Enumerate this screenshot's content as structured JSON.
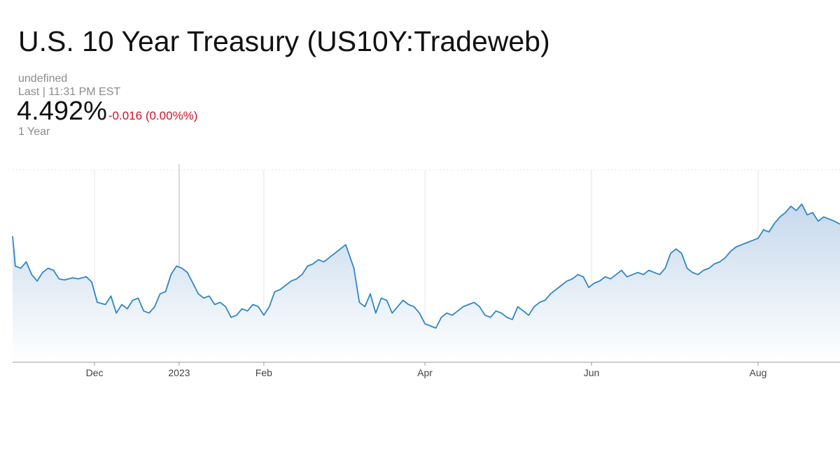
{
  "header": {
    "title": "U.S. 10 Year Treasury (US10Y:Tradeweb)",
    "subtitle_undefined": "undefined",
    "last_updated": "Last | 11:31 PM EST",
    "price": "4.492%",
    "change": "-0.016 (0.00%%)",
    "range": "1 Year"
  },
  "colors": {
    "line": "#2f86c6",
    "area_top": "#c6d9ec",
    "area_bottom": "#ffffff",
    "negative": "#d1102a",
    "grid": "#e6e6e6",
    "axis": "#999999"
  },
  "chart_data": {
    "type": "area",
    "title": "",
    "xlabel": "",
    "ylabel": "",
    "x_tick_labels": [
      "Dec",
      "2023",
      "Feb",
      "Apr",
      "Jun",
      "Aug"
    ],
    "x_ticks": [
      "2022-12-01",
      "2023-01-01",
      "2023-02-01",
      "2023-04-01",
      "2023-06-01",
      "2023-08-01"
    ],
    "xlim": [
      "2022-11-01",
      "2023-08-31"
    ],
    "ylim": [
      3.2,
      5.0
    ],
    "y_axis_labels_visible": false,
    "grid": true,
    "series": [
      {
        "points": [
          [
            "2022-11-01",
            4.38
          ],
          [
            "2022-11-02",
            4.1
          ],
          [
            "2022-11-04",
            4.08
          ],
          [
            "2022-11-06",
            4.14
          ],
          [
            "2022-11-08",
            4.02
          ],
          [
            "2022-11-10",
            3.96
          ],
          [
            "2022-11-12",
            4.04
          ],
          [
            "2022-11-14",
            4.08
          ],
          [
            "2022-11-16",
            4.06
          ],
          [
            "2022-11-18",
            3.98
          ],
          [
            "2022-11-20",
            3.97
          ],
          [
            "2022-11-23",
            3.99
          ],
          [
            "2022-11-25",
            3.98
          ],
          [
            "2022-11-28",
            4.0
          ],
          [
            "2022-11-30",
            3.95
          ],
          [
            "2022-12-02",
            3.76
          ],
          [
            "2022-12-05",
            3.74
          ],
          [
            "2022-12-07",
            3.82
          ],
          [
            "2022-12-09",
            3.66
          ],
          [
            "2022-12-11",
            3.74
          ],
          [
            "2022-12-13",
            3.7
          ],
          [
            "2022-12-15",
            3.78
          ],
          [
            "2022-12-17",
            3.8
          ],
          [
            "2022-12-19",
            3.68
          ],
          [
            "2022-12-21",
            3.66
          ],
          [
            "2022-12-23",
            3.72
          ],
          [
            "2022-12-25",
            3.84
          ],
          [
            "2022-12-27",
            3.86
          ],
          [
            "2022-12-29",
            4.02
          ],
          [
            "2022-12-31",
            4.1
          ],
          [
            "2023-01-02",
            4.08
          ],
          [
            "2023-01-04",
            4.04
          ],
          [
            "2023-01-06",
            3.94
          ],
          [
            "2023-01-08",
            3.84
          ],
          [
            "2023-01-10",
            3.8
          ],
          [
            "2023-01-12",
            3.82
          ],
          [
            "2023-01-14",
            3.74
          ],
          [
            "2023-01-16",
            3.76
          ],
          [
            "2023-01-18",
            3.72
          ],
          [
            "2023-01-20",
            3.62
          ],
          [
            "2023-01-22",
            3.64
          ],
          [
            "2023-01-24",
            3.7
          ],
          [
            "2023-01-26",
            3.68
          ],
          [
            "2023-01-28",
            3.74
          ],
          [
            "2023-01-30",
            3.72
          ],
          [
            "2023-02-01",
            3.64
          ],
          [
            "2023-02-03",
            3.72
          ],
          [
            "2023-02-05",
            3.86
          ],
          [
            "2023-02-07",
            3.88
          ],
          [
            "2023-02-09",
            3.92
          ],
          [
            "2023-02-11",
            3.96
          ],
          [
            "2023-02-13",
            3.98
          ],
          [
            "2023-02-15",
            4.02
          ],
          [
            "2023-02-17",
            4.1
          ],
          [
            "2023-02-19",
            4.12
          ],
          [
            "2023-02-21",
            4.16
          ],
          [
            "2023-02-23",
            4.14
          ],
          [
            "2023-02-25",
            4.18
          ],
          [
            "2023-02-27",
            4.22
          ],
          [
            "2023-03-01",
            4.26
          ],
          [
            "2023-03-03",
            4.3
          ],
          [
            "2023-03-06",
            4.08
          ],
          [
            "2023-03-08",
            3.76
          ],
          [
            "2023-03-10",
            3.72
          ],
          [
            "2023-03-12",
            3.84
          ],
          [
            "2023-03-14",
            3.66
          ],
          [
            "2023-03-16",
            3.8
          ],
          [
            "2023-03-18",
            3.78
          ],
          [
            "2023-03-20",
            3.66
          ],
          [
            "2023-03-22",
            3.72
          ],
          [
            "2023-03-24",
            3.78
          ],
          [
            "2023-03-26",
            3.74
          ],
          [
            "2023-03-28",
            3.72
          ],
          [
            "2023-03-30",
            3.66
          ],
          [
            "2023-04-01",
            3.56
          ],
          [
            "2023-04-03",
            3.54
          ],
          [
            "2023-04-05",
            3.52
          ],
          [
            "2023-04-07",
            3.62
          ],
          [
            "2023-04-09",
            3.66
          ],
          [
            "2023-04-11",
            3.64
          ],
          [
            "2023-04-13",
            3.68
          ],
          [
            "2023-04-15",
            3.72
          ],
          [
            "2023-04-17",
            3.74
          ],
          [
            "2023-04-19",
            3.76
          ],
          [
            "2023-04-21",
            3.72
          ],
          [
            "2023-04-23",
            3.64
          ],
          [
            "2023-04-25",
            3.62
          ],
          [
            "2023-04-27",
            3.68
          ],
          [
            "2023-04-29",
            3.66
          ],
          [
            "2023-05-01",
            3.62
          ],
          [
            "2023-05-03",
            3.6
          ],
          [
            "2023-05-05",
            3.72
          ],
          [
            "2023-05-07",
            3.68
          ],
          [
            "2023-05-09",
            3.64
          ],
          [
            "2023-05-11",
            3.72
          ],
          [
            "2023-05-13",
            3.76
          ],
          [
            "2023-05-15",
            3.78
          ],
          [
            "2023-05-17",
            3.84
          ],
          [
            "2023-05-19",
            3.88
          ],
          [
            "2023-05-21",
            3.92
          ],
          [
            "2023-05-23",
            3.96
          ],
          [
            "2023-05-25",
            3.98
          ],
          [
            "2023-05-27",
            4.02
          ],
          [
            "2023-05-29",
            4.0
          ],
          [
            "2023-05-31",
            3.9
          ],
          [
            "2023-06-02",
            3.94
          ],
          [
            "2023-06-04",
            3.96
          ],
          [
            "2023-06-06",
            4.0
          ],
          [
            "2023-06-08",
            3.98
          ],
          [
            "2023-06-10",
            4.02
          ],
          [
            "2023-06-12",
            4.06
          ],
          [
            "2023-06-14",
            4.0
          ],
          [
            "2023-06-16",
            4.02
          ],
          [
            "2023-06-18",
            4.04
          ],
          [
            "2023-06-20",
            4.02
          ],
          [
            "2023-06-22",
            4.06
          ],
          [
            "2023-06-24",
            4.04
          ],
          [
            "2023-06-26",
            4.02
          ],
          [
            "2023-06-28",
            4.08
          ],
          [
            "2023-06-30",
            4.22
          ],
          [
            "2023-07-02",
            4.26
          ],
          [
            "2023-07-04",
            4.22
          ],
          [
            "2023-07-06",
            4.08
          ],
          [
            "2023-07-08",
            4.04
          ],
          [
            "2023-07-10",
            4.02
          ],
          [
            "2023-07-12",
            4.06
          ],
          [
            "2023-07-14",
            4.08
          ],
          [
            "2023-07-16",
            4.12
          ],
          [
            "2023-07-18",
            4.14
          ],
          [
            "2023-07-20",
            4.18
          ],
          [
            "2023-07-22",
            4.24
          ],
          [
            "2023-07-24",
            4.28
          ],
          [
            "2023-07-26",
            4.3
          ],
          [
            "2023-07-28",
            4.32
          ],
          [
            "2023-07-30",
            4.34
          ],
          [
            "2023-08-01",
            4.36
          ],
          [
            "2023-08-03",
            4.44
          ],
          [
            "2023-08-05",
            4.42
          ],
          [
            "2023-08-07",
            4.5
          ],
          [
            "2023-08-09",
            4.56
          ],
          [
            "2023-08-11",
            4.6
          ],
          [
            "2023-08-13",
            4.66
          ],
          [
            "2023-08-15",
            4.62
          ],
          [
            "2023-08-17",
            4.68
          ],
          [
            "2023-08-19",
            4.58
          ],
          [
            "2023-08-21",
            4.6
          ],
          [
            "2023-08-23",
            4.52
          ],
          [
            "2023-08-25",
            4.56
          ],
          [
            "2023-08-27",
            4.54
          ],
          [
            "2023-08-29",
            4.52
          ],
          [
            "2023-08-31",
            4.492
          ]
        ]
      }
    ]
  }
}
